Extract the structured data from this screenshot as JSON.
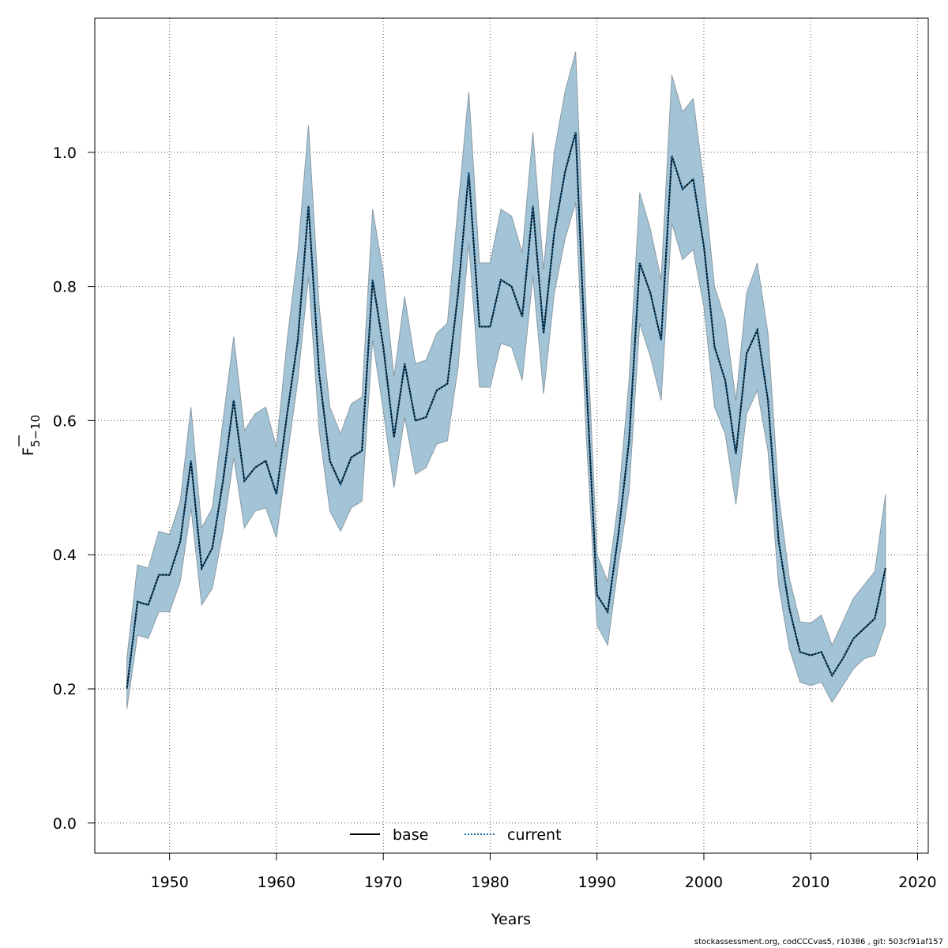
{
  "chart_data": {
    "type": "line",
    "xlabel": "Years",
    "ylabel_main": "F",
    "ylabel_sub": "5−10",
    "xlim": [
      1943,
      2021
    ],
    "ylim": [
      -0.045,
      1.2
    ],
    "x_ticks": [
      1950,
      1960,
      1970,
      1980,
      1990,
      2000,
      2010,
      2020
    ],
    "y_ticks": [
      0.0,
      0.2,
      0.4,
      0.6,
      0.8,
      1.0
    ],
    "y_tick_labels": [
      "0.0",
      "0.2",
      "0.4",
      "0.6",
      "0.8",
      "1.0"
    ],
    "grid": true,
    "legend_position": "bottom-center",
    "band_color": "#a3c4d6",
    "band_edge_color": "#8a9aa4",
    "line_color": "#000000",
    "current_color": "#1f6fa3",
    "x": [
      1946,
      1947,
      1948,
      1949,
      1950,
      1951,
      1952,
      1953,
      1954,
      1955,
      1956,
      1957,
      1958,
      1959,
      1960,
      1961,
      1962,
      1963,
      1964,
      1965,
      1966,
      1967,
      1968,
      1969,
      1970,
      1971,
      1972,
      1973,
      1974,
      1975,
      1976,
      1977,
      1978,
      1979,
      1980,
      1981,
      1982,
      1983,
      1984,
      1985,
      1986,
      1987,
      1988,
      1989,
      1990,
      1991,
      1992,
      1993,
      1994,
      1995,
      1996,
      1997,
      1998,
      1999,
      2000,
      2001,
      2002,
      2003,
      2004,
      2005,
      2006,
      2007,
      2008,
      2009,
      2010,
      2011,
      2012,
      2013,
      2014,
      2015,
      2016,
      2017
    ],
    "series": [
      {
        "name": "base",
        "style": "solid",
        "values": [
          0.2,
          0.33,
          0.325,
          0.37,
          0.37,
          0.42,
          0.54,
          0.38,
          0.41,
          0.51,
          0.63,
          0.51,
          0.53,
          0.54,
          0.49,
          0.61,
          0.72,
          0.92,
          0.67,
          0.54,
          0.505,
          0.545,
          0.555,
          0.81,
          0.71,
          0.575,
          0.685,
          0.6,
          0.605,
          0.645,
          0.655,
          0.79,
          0.97,
          0.74,
          0.74,
          0.81,
          0.8,
          0.755,
          0.92,
          0.73,
          0.88,
          0.97,
          1.03,
          0.66,
          0.34,
          0.315,
          0.43,
          0.57,
          0.835,
          0.79,
          0.72,
          0.995,
          0.945,
          0.96,
          0.86,
          0.71,
          0.66,
          0.55,
          0.7,
          0.735,
          0.63,
          0.42,
          0.32,
          0.255,
          0.25,
          0.255,
          0.22,
          0.245,
          0.275,
          0.29,
          0.305,
          0.38
        ]
      },
      {
        "name": "current",
        "style": "dotted",
        "values": [
          0.2,
          0.33,
          0.325,
          0.37,
          0.37,
          0.42,
          0.54,
          0.38,
          0.41,
          0.51,
          0.63,
          0.51,
          0.53,
          0.54,
          0.49,
          0.61,
          0.72,
          0.92,
          0.67,
          0.54,
          0.505,
          0.545,
          0.555,
          0.81,
          0.71,
          0.575,
          0.685,
          0.6,
          0.605,
          0.645,
          0.655,
          0.79,
          0.97,
          0.74,
          0.74,
          0.81,
          0.8,
          0.755,
          0.92,
          0.73,
          0.88,
          0.97,
          1.03,
          0.66,
          0.34,
          0.315,
          0.43,
          0.57,
          0.835,
          0.79,
          0.72,
          0.995,
          0.945,
          0.96,
          0.86,
          0.71,
          0.66,
          0.55,
          0.7,
          0.735,
          0.63,
          0.42,
          0.32,
          0.255,
          0.25,
          0.255,
          0.22,
          0.245,
          0.275,
          0.29,
          0.305,
          0.38
        ]
      }
    ],
    "band_upper": [
      0.245,
      0.385,
      0.38,
      0.435,
      0.43,
      0.48,
      0.62,
      0.44,
      0.47,
      0.6,
      0.725,
      0.585,
      0.61,
      0.62,
      0.56,
      0.72,
      0.85,
      1.04,
      0.77,
      0.62,
      0.58,
      0.625,
      0.635,
      0.915,
      0.82,
      0.665,
      0.785,
      0.685,
      0.69,
      0.73,
      0.745,
      0.92,
      1.09,
      0.835,
      0.835,
      0.915,
      0.905,
      0.85,
      1.03,
      0.825,
      1.0,
      1.09,
      1.15,
      0.76,
      0.4,
      0.36,
      0.48,
      0.66,
      0.94,
      0.885,
      0.81,
      1.115,
      1.06,
      1.08,
      0.955,
      0.8,
      0.75,
      0.63,
      0.79,
      0.835,
      0.73,
      0.49,
      0.365,
      0.3,
      0.298,
      0.31,
      0.265,
      0.3,
      0.335,
      0.355,
      0.375,
      0.49
    ],
    "band_lower": [
      0.17,
      0.28,
      0.275,
      0.315,
      0.315,
      0.36,
      0.47,
      0.325,
      0.35,
      0.435,
      0.545,
      0.44,
      0.465,
      0.47,
      0.425,
      0.545,
      0.66,
      0.815,
      0.585,
      0.465,
      0.435,
      0.47,
      0.48,
      0.72,
      0.615,
      0.5,
      0.605,
      0.52,
      0.53,
      0.565,
      0.57,
      0.68,
      0.865,
      0.65,
      0.65,
      0.715,
      0.71,
      0.66,
      0.815,
      0.64,
      0.79,
      0.87,
      0.925,
      0.575,
      0.295,
      0.265,
      0.385,
      0.495,
      0.745,
      0.695,
      0.63,
      0.895,
      0.84,
      0.855,
      0.77,
      0.62,
      0.58,
      0.475,
      0.61,
      0.645,
      0.555,
      0.355,
      0.26,
      0.21,
      0.205,
      0.21,
      0.18,
      0.205,
      0.23,
      0.245,
      0.25,
      0.295
    ]
  },
  "footer": "stockassessment.org, codCCCvas5, r10386 , git: 503cf91af157"
}
